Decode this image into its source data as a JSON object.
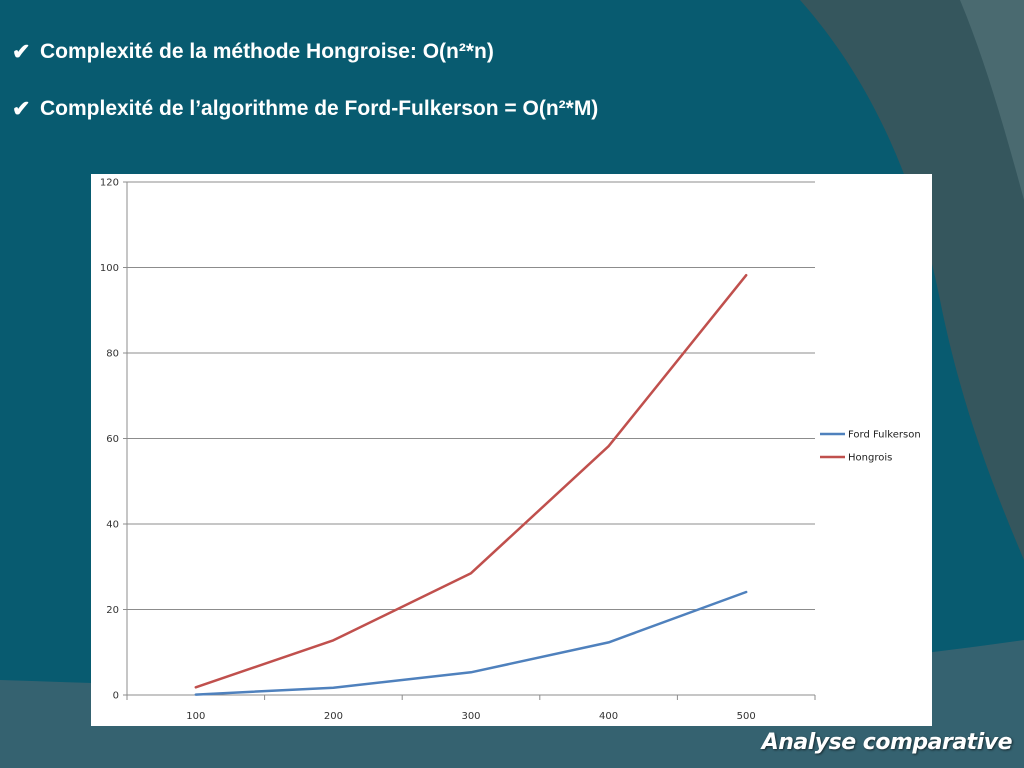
{
  "slide": {
    "bullets": [
      {
        "check": "✔",
        "text": "Complexité de la méthode Hongroise: O(n²*n)"
      },
      {
        "check": "✔",
        "text": "Complexité de l’algorithme de Ford-Fulkerson = O(n²*M)"
      }
    ],
    "footer_title": "Analyse comparative",
    "colors": {
      "background": "#085b70",
      "accent_dark": "#3e5a60",
      "text": "#ffffff"
    }
  },
  "chart_data": {
    "type": "line",
    "title": "",
    "xlabel": "",
    "ylabel": "",
    "categories": [
      "100",
      "200",
      "300",
      "400",
      "500"
    ],
    "series": [
      {
        "name": "Ford Fulkerson",
        "color": "#4f81bd",
        "values": [
          0.1,
          1.7,
          5.3,
          12.3,
          24.1
        ]
      },
      {
        "name": "Hongrois",
        "color": "#c0504d",
        "values": [
          1.8,
          12.8,
          28.5,
          58.2,
          98.2
        ]
      }
    ],
    "ylim": [
      0,
      120
    ],
    "yticks": [
      0,
      20,
      40,
      60,
      80,
      100,
      120
    ],
    "grid": true,
    "legend": "right"
  }
}
